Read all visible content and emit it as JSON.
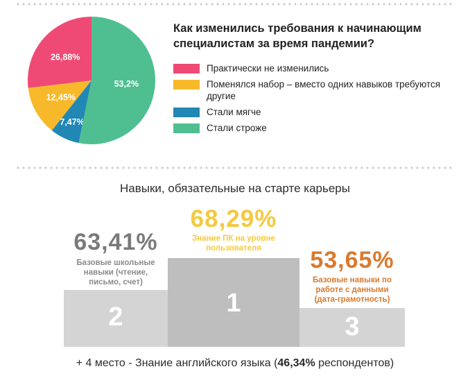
{
  "pie": {
    "question": "Как изменились требования к начинающим специалистам за время пандемии?",
    "chart_data": {
      "type": "pie",
      "slices": [
        {
          "label": "Практически не изменились",
          "value": 26.88,
          "display": "26,88%",
          "color": "#ef4a75"
        },
        {
          "label": "Поменялся набор – вместо одних навыков требуются другие",
          "value": 12.45,
          "display": "12,45%",
          "color": "#f7b92a"
        },
        {
          "label": "Стали мягче",
          "value": 7.47,
          "display": "7,47%",
          "color": "#2187b5"
        },
        {
          "label": "Стали строже",
          "value": 53.2,
          "display": "53,2%",
          "color": "#4fbf91"
        }
      ]
    }
  },
  "skills": {
    "title": "Навыки, обязательные на старте карьеры",
    "chart_data": {
      "type": "bar",
      "categories": [
        "Базовые школьные навыки (чтение, письмо, счет)",
        "Знание ПК на уровне пользователя",
        "Базовые навыки по работе с данными (дата-грамотность)"
      ],
      "values": [
        63.41,
        68.29,
        53.65
      ],
      "ranks": [
        "2",
        "1",
        "3"
      ],
      "displays": [
        "63,41%",
        "68,29%",
        "53,65%"
      ],
      "colors": {
        "place1": "#f5c93f",
        "place2": "#7a7a7a",
        "place3": "#d9792e",
        "block_dark": "#bebebe",
        "block_light": "#d4d4d4"
      }
    },
    "footnote": {
      "prefix": "+ 4 место - Знание английского языка (",
      "value": "46,34%",
      "suffix": " респондентов)"
    }
  }
}
